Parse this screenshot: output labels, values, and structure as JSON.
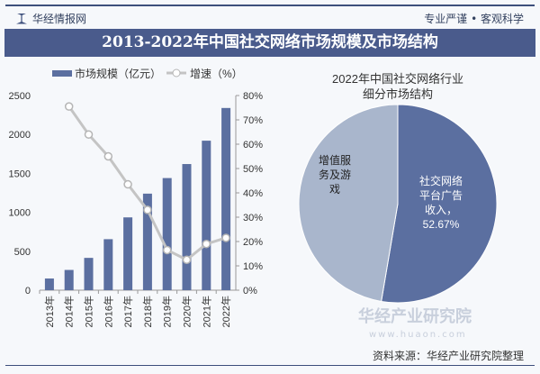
{
  "header": {
    "brand": "华经情报网",
    "slogan": "专业严谨 • 客观科学",
    "title": "2013-2022年中国社交网络市场规模及市场结构"
  },
  "footer": {
    "source": "资料来源：华经产业研究院整理",
    "watermark": "华经产业研究院",
    "watermark_url": "www.huaon.com"
  },
  "colors": {
    "bar": "#5b6fa0",
    "line": "#c4c4c4",
    "pie_ad": "#5b6fa0",
    "pie_vas": "#a9b6cc",
    "title_bg": "#4a5b8c"
  },
  "chart_data": [
    {
      "type": "bar+line",
      "categories": [
        "2013年",
        "2014年",
        "2015年",
        "2016年",
        "2017年",
        "2018年",
        "2019年",
        "2020年",
        "2021年",
        "2022年"
      ],
      "series": [
        {
          "name": "市场规模（亿元）",
          "type": "bar",
          "axis": "left",
          "values": [
            150,
            260,
            415,
            655,
            935,
            1240,
            1440,
            1620,
            1920,
            2340
          ]
        },
        {
          "name": "增速（%）",
          "type": "line",
          "axis": "right",
          "values": [
            null,
            75.5,
            64,
            55,
            43.5,
            33,
            16.5,
            12.5,
            19,
            21.5
          ]
        }
      ],
      "ylim_left": [
        0,
        2500
      ],
      "yticks_left": [
        "0",
        "500",
        "1000",
        "1500",
        "2000",
        "2500"
      ],
      "ylim_right": [
        0,
        80
      ],
      "yticks_right": [
        "0%",
        "10%",
        "20%",
        "30%",
        "40%",
        "50%",
        "60%",
        "70%",
        "80%"
      ],
      "legend": "top"
    },
    {
      "type": "pie",
      "title": "2022年中国社交网络行业细分市场结构",
      "slices": [
        {
          "label": "社交网络平台广告收入",
          "value": 52.67,
          "data_label": "社交网络\n平台广告\n收入，\n52.67%"
        },
        {
          "label": "增值服务及游戏",
          "value": 47.33,
          "data_label": "增值服\n务及游\n戏"
        }
      ]
    }
  ]
}
